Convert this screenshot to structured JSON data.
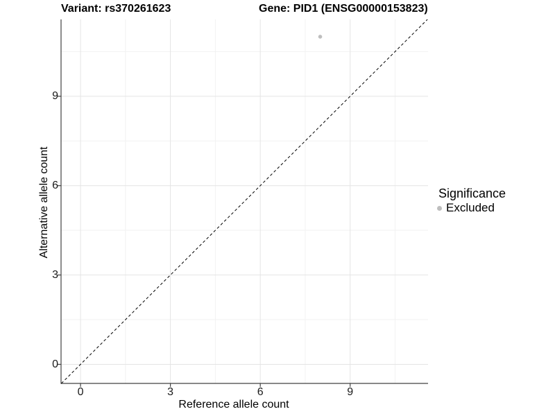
{
  "chart_data": {
    "type": "scatter",
    "title_left": "Variant: rs370261623",
    "title_right": "Gene: PID1 (ENSG00000153823)",
    "xlabel": "Reference allele count",
    "ylabel": "Alternative allele count",
    "xlim": [
      -0.65,
      11.6
    ],
    "ylim": [
      -0.64,
      11.58
    ],
    "x_ticks": [
      "0",
      "3",
      "6",
      "9"
    ],
    "y_ticks": [
      "0",
      "3",
      "6",
      "9"
    ],
    "x_tick_values": [
      0,
      3,
      6,
      9
    ],
    "y_tick_values": [
      0,
      3,
      6,
      9
    ],
    "x_minor_ticks": [
      1.5,
      4.5,
      7.5,
      10.5
    ],
    "y_minor_ticks": [
      1.5,
      4.5,
      7.5,
      10.5
    ],
    "grid": "major+minor",
    "points": [
      {
        "x": 8,
        "y": 11,
        "significance": "Excluded"
      }
    ],
    "reference_line": {
      "type": "identity y=x",
      "style": "dashed",
      "color": "#000000"
    },
    "legend": {
      "title": "Significance",
      "position": "right",
      "items": [
        {
          "label": "Excluded",
          "color": "#bebebe",
          "marker": "circle"
        }
      ]
    },
    "colors": {
      "background": "#ffffff",
      "grid_major": "#e4e4e4",
      "grid_minor": "#f2f2f2",
      "axis_line": "#404040",
      "tick_text": "#1a1a1a",
      "title_text": "#000000",
      "point": "#bebebe"
    }
  }
}
